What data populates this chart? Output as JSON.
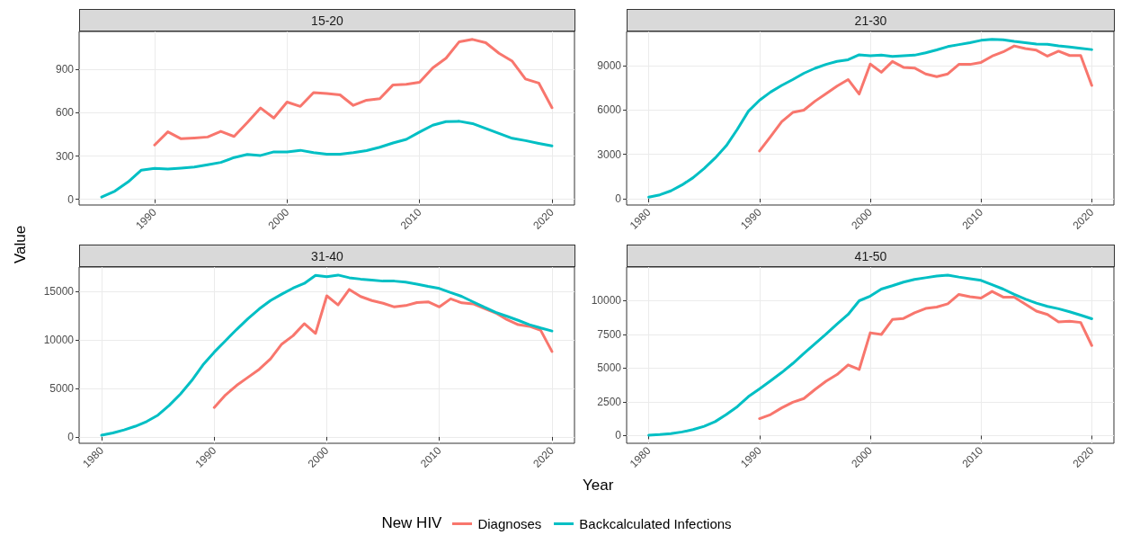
{
  "chart_data": [
    {
      "type": "line",
      "title": "15-20",
      "xlabel": "Year",
      "ylabel": "Value",
      "legend": "bottom",
      "legend_title": "New HIV",
      "grid": true,
      "xlim": [
        1984.3,
        2021.7
      ],
      "xticks": [
        1990,
        2000,
        2010,
        2020
      ],
      "ylim": [
        -39,
        1163
      ],
      "yticks": [
        0,
        300,
        600,
        900
      ],
      "series": [
        {
          "name": "Diagnoses",
          "color": "#f8766d",
          "x": [
            1990,
            1991,
            1992,
            1993,
            1994,
            1995,
            1996,
            1997,
            1998,
            1999,
            2000,
            2001,
            2002,
            2003,
            2004,
            2005,
            2006,
            2007,
            2008,
            2009,
            2010,
            2011,
            2012,
            2013,
            2014,
            2015,
            2016,
            2017,
            2018,
            2019,
            2020
          ],
          "values": [
            377,
            468,
            420,
            425,
            432,
            471,
            436,
            532,
            633,
            564,
            674,
            644,
            740,
            733,
            724,
            651,
            687,
            697,
            793,
            797,
            811,
            911,
            978,
            1092,
            1108,
            1085,
            1012,
            957,
            834,
            806,
            635
          ]
        },
        {
          "name": "Backcalculated Infections",
          "color": "#00bfc4",
          "x": [
            1986,
            1987,
            1988,
            1989,
            1990,
            1991,
            1992,
            1993,
            1994,
            1995,
            1996,
            1997,
            1998,
            1999,
            2000,
            2001,
            2002,
            2003,
            2004,
            2005,
            2006,
            2007,
            2008,
            2009,
            2010,
            2011,
            2012,
            2013,
            2014,
            2015,
            2016,
            2017,
            2018,
            2019,
            2020
          ],
          "values": [
            16,
            57,
            121,
            203,
            215,
            210,
            217,
            224,
            240,
            256,
            290,
            311,
            304,
            329,
            329,
            340,
            324,
            313,
            313,
            324,
            338,
            361,
            391,
            416,
            466,
            514,
            539,
            541,
            525,
            491,
            457,
            423,
            407,
            388,
            370
          ]
        }
      ]
    },
    {
      "type": "line",
      "title": "21-30",
      "grid": true,
      "xlim": [
        1978,
        2022
      ],
      "xticks": [
        1980,
        1990,
        2000,
        2010,
        2020
      ],
      "ylim": [
        -422,
        11312
      ],
      "yticks": [
        0,
        3000,
        6000,
        9000
      ],
      "series": [
        {
          "name": "Diagnoses",
          "color": "#f8766d",
          "x": [
            1990,
            1991,
            1992,
            1993,
            1994,
            1995,
            1996,
            1997,
            1998,
            1999,
            2000,
            2001,
            2002,
            2003,
            2004,
            2005,
            2006,
            2007,
            2008,
            2009,
            2010,
            2011,
            2012,
            2013,
            2014,
            2015,
            2016,
            2017,
            2018,
            2019,
            2020
          ],
          "values": [
            3229,
            4209,
            5211,
            5835,
            5991,
            6592,
            7104,
            7616,
            8062,
            7082,
            9108,
            8552,
            9287,
            8886,
            8841,
            8440,
            8262,
            8440,
            9086,
            9086,
            9220,
            9643,
            9932,
            10333,
            10155,
            10044,
            9643,
            9977,
            9687,
            9687,
            7661
          ]
        },
        {
          "name": "Backcalculated Infections",
          "color": "#00bfc4",
          "x": [
            1980,
            1981,
            1982,
            1983,
            1984,
            1985,
            1986,
            1987,
            1988,
            1989,
            1990,
            1991,
            1992,
            1993,
            1994,
            1995,
            1996,
            1997,
            1998,
            1999,
            2000,
            2001,
            2002,
            2003,
            2004,
            2005,
            2006,
            2007,
            2008,
            2009,
            2010,
            2011,
            2012,
            2013,
            2014,
            2015,
            2016,
            2017,
            2018,
            2019,
            2020
          ],
          "values": [
            111,
            267,
            534,
            935,
            1425,
            2049,
            2761,
            3585,
            4699,
            5924,
            6659,
            7215,
            7661,
            8062,
            8485,
            8819,
            9086,
            9286,
            9398,
            9732,
            9665,
            9710,
            9620,
            9665,
            9710,
            9866,
            10066,
            10289,
            10422,
            10556,
            10712,
            10779,
            10756,
            10645,
            10556,
            10467,
            10445,
            10333,
            10266,
            10177,
            10088
          ]
        }
      ]
    },
    {
      "type": "line",
      "title": "31-40",
      "grid": true,
      "xlim": [
        1978,
        2022
      ],
      "xticks": [
        1980,
        1990,
        2000,
        2010,
        2020
      ],
      "ylim": [
        -652,
        17479
      ],
      "yticks": [
        0,
        5000,
        10000,
        15000
      ],
      "series": [
        {
          "name": "Diagnoses",
          "color": "#f8766d",
          "x": [
            1990,
            1991,
            1992,
            1993,
            1994,
            1995,
            1996,
            1997,
            1998,
            1999,
            2000,
            2001,
            2002,
            2003,
            2004,
            2005,
            2006,
            2007,
            2008,
            2009,
            2010,
            2011,
            2012,
            2013,
            2014,
            2015,
            2016,
            2017,
            2018,
            2019,
            2020
          ],
          "values": [
            3034,
            4310,
            5310,
            6137,
            6965,
            8034,
            9551,
            10413,
            11654,
            10654,
            14516,
            13585,
            15172,
            14447,
            14034,
            13758,
            13378,
            13516,
            13827,
            13896,
            13378,
            14206,
            13792,
            13689,
            13206,
            12758,
            12068,
            11551,
            11378,
            10965,
            8792
          ]
        },
        {
          "name": "Backcalculated Infections",
          "color": "#00bfc4",
          "x": [
            1980,
            1981,
            1982,
            1983,
            1984,
            1985,
            1986,
            1987,
            1988,
            1989,
            1990,
            1991,
            1992,
            1993,
            1994,
            1995,
            1996,
            1997,
            1998,
            1999,
            2000,
            2001,
            2002,
            2003,
            2004,
            2005,
            2006,
            2007,
            2008,
            2009,
            2010,
            2011,
            2012,
            2013,
            2014,
            2015,
            2016,
            2017,
            2018,
            2019,
            2020
          ],
          "values": [
            172,
            414,
            724,
            1103,
            1586,
            2241,
            3241,
            4413,
            5793,
            7413,
            8723,
            9896,
            11068,
            12172,
            13172,
            14034,
            14689,
            15310,
            15792,
            16620,
            16482,
            16655,
            16379,
            16241,
            16137,
            16034,
            16034,
            15930,
            15723,
            15482,
            15275,
            14861,
            14448,
            13896,
            13344,
            12827,
            12413,
            12000,
            11551,
            11206,
            10896
          ]
        }
      ]
    },
    {
      "type": "line",
      "title": "41-50",
      "grid": true,
      "xlim": [
        1978,
        2022
      ],
      "xticks": [
        1980,
        1990,
        2000,
        2010,
        2020
      ],
      "ylim": [
        -569,
        12499
      ],
      "yticks": [
        0,
        2500,
        5000,
        7500,
        10000
      ],
      "series": [
        {
          "name": "Diagnoses",
          "color": "#f8766d",
          "x": [
            1990,
            1991,
            1992,
            1993,
            1994,
            1995,
            1996,
            1997,
            1998,
            1999,
            2000,
            2001,
            2002,
            2003,
            2004,
            2005,
            2006,
            2007,
            2008,
            2009,
            2010,
            2011,
            2012,
            2013,
            2014,
            2015,
            2016,
            2017,
            2018,
            2019,
            2020
          ],
          "values": [
            1262,
            1559,
            2054,
            2475,
            2747,
            3416,
            4034,
            4529,
            5247,
            4901,
            7623,
            7499,
            8613,
            8687,
            9108,
            9430,
            9529,
            9776,
            10469,
            10296,
            10197,
            10692,
            10271,
            10271,
            9751,
            9232,
            8984,
            8440,
            8489,
            8390,
            6683
          ]
        },
        {
          "name": "Backcalculated Infections",
          "color": "#00bfc4",
          "x": [
            1980,
            1981,
            1982,
            1983,
            1984,
            1985,
            1986,
            1987,
            1988,
            1989,
            1990,
            1991,
            1992,
            1993,
            1994,
            1995,
            1996,
            1997,
            1998,
            1999,
            2000,
            2001,
            2002,
            2003,
            2004,
            2005,
            2006,
            2007,
            2008,
            2009,
            2010,
            2011,
            2012,
            2013,
            2014,
            2015,
            2016,
            2017,
            2018,
            2019,
            2020
          ],
          "values": [
            25,
            74,
            149,
            272,
            446,
            693,
            1040,
            1559,
            2153,
            2896,
            3465,
            4059,
            4678,
            5346,
            6089,
            6806,
            7524,
            8267,
            8984,
            9999,
            10346,
            10865,
            11113,
            11385,
            11583,
            11707,
            11831,
            11905,
            11757,
            11633,
            11509,
            11187,
            10865,
            10469,
            10123,
            9826,
            9578,
            9405,
            9182,
            8935,
            8663
          ]
        }
      ]
    }
  ]
}
